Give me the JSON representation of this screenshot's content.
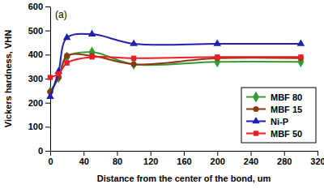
{
  "chart_data": {
    "type": "line",
    "annotation": "(a)",
    "x_label": "Distance from the center of the bond, um",
    "y_label": "Vickers hardness, VHN",
    "x": [
      0,
      10,
      20,
      50,
      100,
      200,
      300
    ],
    "series": [
      {
        "name": "MBF 80",
        "color": "#339933",
        "marker": "diamond",
        "line_style": "solid",
        "values": [
          245,
          305,
          390,
          410,
          360,
          370,
          370
        ]
      },
      {
        "name": "MBF 15",
        "color": "#8b3a10",
        "marker": "circle",
        "line_style": "solid",
        "values": [
          245,
          305,
          395,
          395,
          360,
          385,
          385
        ]
      },
      {
        "name": "Ni-P",
        "color": "#1f1fb0",
        "marker": "triangle",
        "line_style": "solid",
        "values": [
          225,
          330,
          470,
          485,
          445,
          445,
          445
        ]
      },
      {
        "name": "MBF 50",
        "color": "#ee1c25",
        "marker": "square",
        "line_style": "solid",
        "values": [
          305,
          320,
          365,
          390,
          385,
          390,
          390
        ]
      }
    ],
    "xlim": [
      0,
      320
    ],
    "xticks": [
      0,
      40,
      80,
      120,
      160,
      200,
      240,
      280,
      320
    ],
    "ylim": [
      0,
      600
    ],
    "yticks": [
      0,
      100,
      200,
      300,
      400,
      500,
      600
    ],
    "grid": false,
    "legend": "lower right"
  }
}
